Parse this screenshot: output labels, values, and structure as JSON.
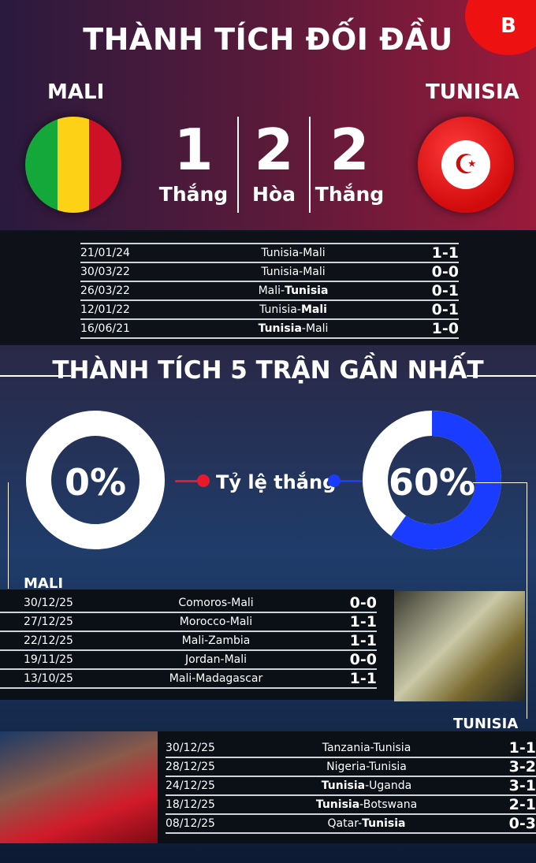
{
  "header": {
    "title": "THÀNH TÍCH ĐỐI ĐẦU",
    "logo_letter": "B"
  },
  "teams": {
    "left": "MALI",
    "right": "TUNISIA"
  },
  "h2h_summary": [
    {
      "value": "1",
      "label": "Thắng"
    },
    {
      "value": "2",
      "label": "Hòa"
    },
    {
      "value": "2",
      "label": "Thắng"
    }
  ],
  "h2h_matches": [
    {
      "date": "21/01/24",
      "home": "Tunisia",
      "away": "Mali",
      "bold": "",
      "score": "1-1"
    },
    {
      "date": "30/03/22",
      "home": "Tunisia",
      "away": "Mali",
      "bold": "",
      "score": "0-0"
    },
    {
      "date": "26/03/22",
      "home": "Mali",
      "away": "Tunisia",
      "bold": "away",
      "score": "0-1"
    },
    {
      "date": "12/01/22",
      "home": "Tunisia",
      "away": "Mali",
      "bold": "away",
      "score": "0-1"
    },
    {
      "date": "16/06/21",
      "home": "Tunisia",
      "away": "Mali",
      "bold": "home",
      "score": "1-0"
    }
  ],
  "form": {
    "title": "THÀNH TÍCH 5 TRẬN GẦN NHẤT",
    "win_rate_label": "Tỷ lệ thắng",
    "left_pct_text": "0%",
    "left_pct": 0,
    "right_pct_text": "60%",
    "right_pct": 60,
    "colors": {
      "left": "#e8192c",
      "right": "#1a3cff"
    }
  },
  "mali_form": {
    "label": "MALI",
    "matches": [
      {
        "date": "30/12/25",
        "home": "Comoros",
        "away": "Mali",
        "bold": "",
        "score": "0-0"
      },
      {
        "date": "27/12/25",
        "home": "Morocco",
        "away": "Mali",
        "bold": "",
        "score": "1-1"
      },
      {
        "date": "22/12/25",
        "home": "Mali",
        "away": "Zambia",
        "bold": "",
        "score": "1-1"
      },
      {
        "date": "19/11/25",
        "home": "Jordan",
        "away": "Mali",
        "bold": "",
        "score": "0-0"
      },
      {
        "date": "13/10/25",
        "home": "Mali",
        "away": "Madagascar",
        "bold": "",
        "score": "1-1"
      }
    ]
  },
  "tunisia_form": {
    "label": "TUNISIA",
    "matches": [
      {
        "date": "30/12/25",
        "home": "Tanzania",
        "away": "Tunisia",
        "bold": "",
        "score": "1-1"
      },
      {
        "date": "28/12/25",
        "home": "Nigeria",
        "away": "Tunisia",
        "bold": "",
        "score": "3-2"
      },
      {
        "date": "24/12/25",
        "home": "Tunisia",
        "away": "Uganda",
        "bold": "home",
        "score": "3-1"
      },
      {
        "date": "18/12/25",
        "home": "Tunisia",
        "away": "Botswana",
        "bold": "home",
        "score": "2-1"
      },
      {
        "date": "08/12/25",
        "home": "Qatar",
        "away": "Tunisia",
        "bold": "away",
        "score": "0-3"
      }
    ]
  }
}
